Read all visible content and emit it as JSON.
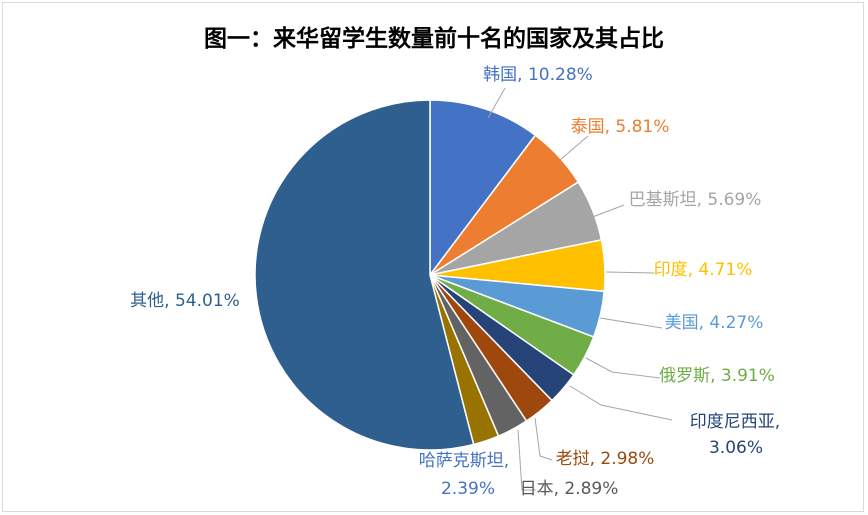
{
  "chart_data": {
    "type": "pie",
    "title": "图一：来华留学生数量前十名的国家及其占比",
    "slices": [
      {
        "label": "韩国",
        "value": 10.28,
        "value_text": "10.28%",
        "color": "#4472C4",
        "label_color": "#4472C4"
      },
      {
        "label": "泰国",
        "value": 5.81,
        "value_text": "5.81%",
        "color": "#ED7D31",
        "label_color": "#ED7D31"
      },
      {
        "label": "巴基斯坦",
        "value": 5.69,
        "value_text": "5.69%",
        "color": "#A5A5A5",
        "label_color": "#A5A5A5"
      },
      {
        "label": "印度",
        "value": 4.71,
        "value_text": "4.71%",
        "color": "#FFC000",
        "label_color": "#FFC000"
      },
      {
        "label": "美国",
        "value": 4.27,
        "value_text": "4.27%",
        "color": "#5B9BD5",
        "label_color": "#5B9BD5"
      },
      {
        "label": "俄罗斯",
        "value": 3.91,
        "value_text": "3.91%",
        "color": "#70AD47",
        "label_color": "#70AD47"
      },
      {
        "label": "印度尼西亚",
        "value": 3.06,
        "value_text": "3.06%",
        "color": "#264478",
        "label_color": "#264478"
      },
      {
        "label": "老挝",
        "value": 2.98,
        "value_text": "2.98%",
        "color": "#9E480E",
        "label_color": "#9E480E"
      },
      {
        "label": "日本",
        "value": 2.89,
        "value_text": "2.89%",
        "color": "#636363",
        "label_color": "#595959"
      },
      {
        "label": "哈萨克斯坦",
        "value": 2.39,
        "value_text": "2.39%",
        "color": "#997300",
        "label_color": "#4472C4"
      },
      {
        "label": "其他",
        "value": 54.01,
        "value_text": "54.01%",
        "color": "#2F5F8F",
        "label_color": "#2F5F8F"
      }
    ],
    "legend": "none",
    "data_labels": "outside-with-leader-lines"
  }
}
